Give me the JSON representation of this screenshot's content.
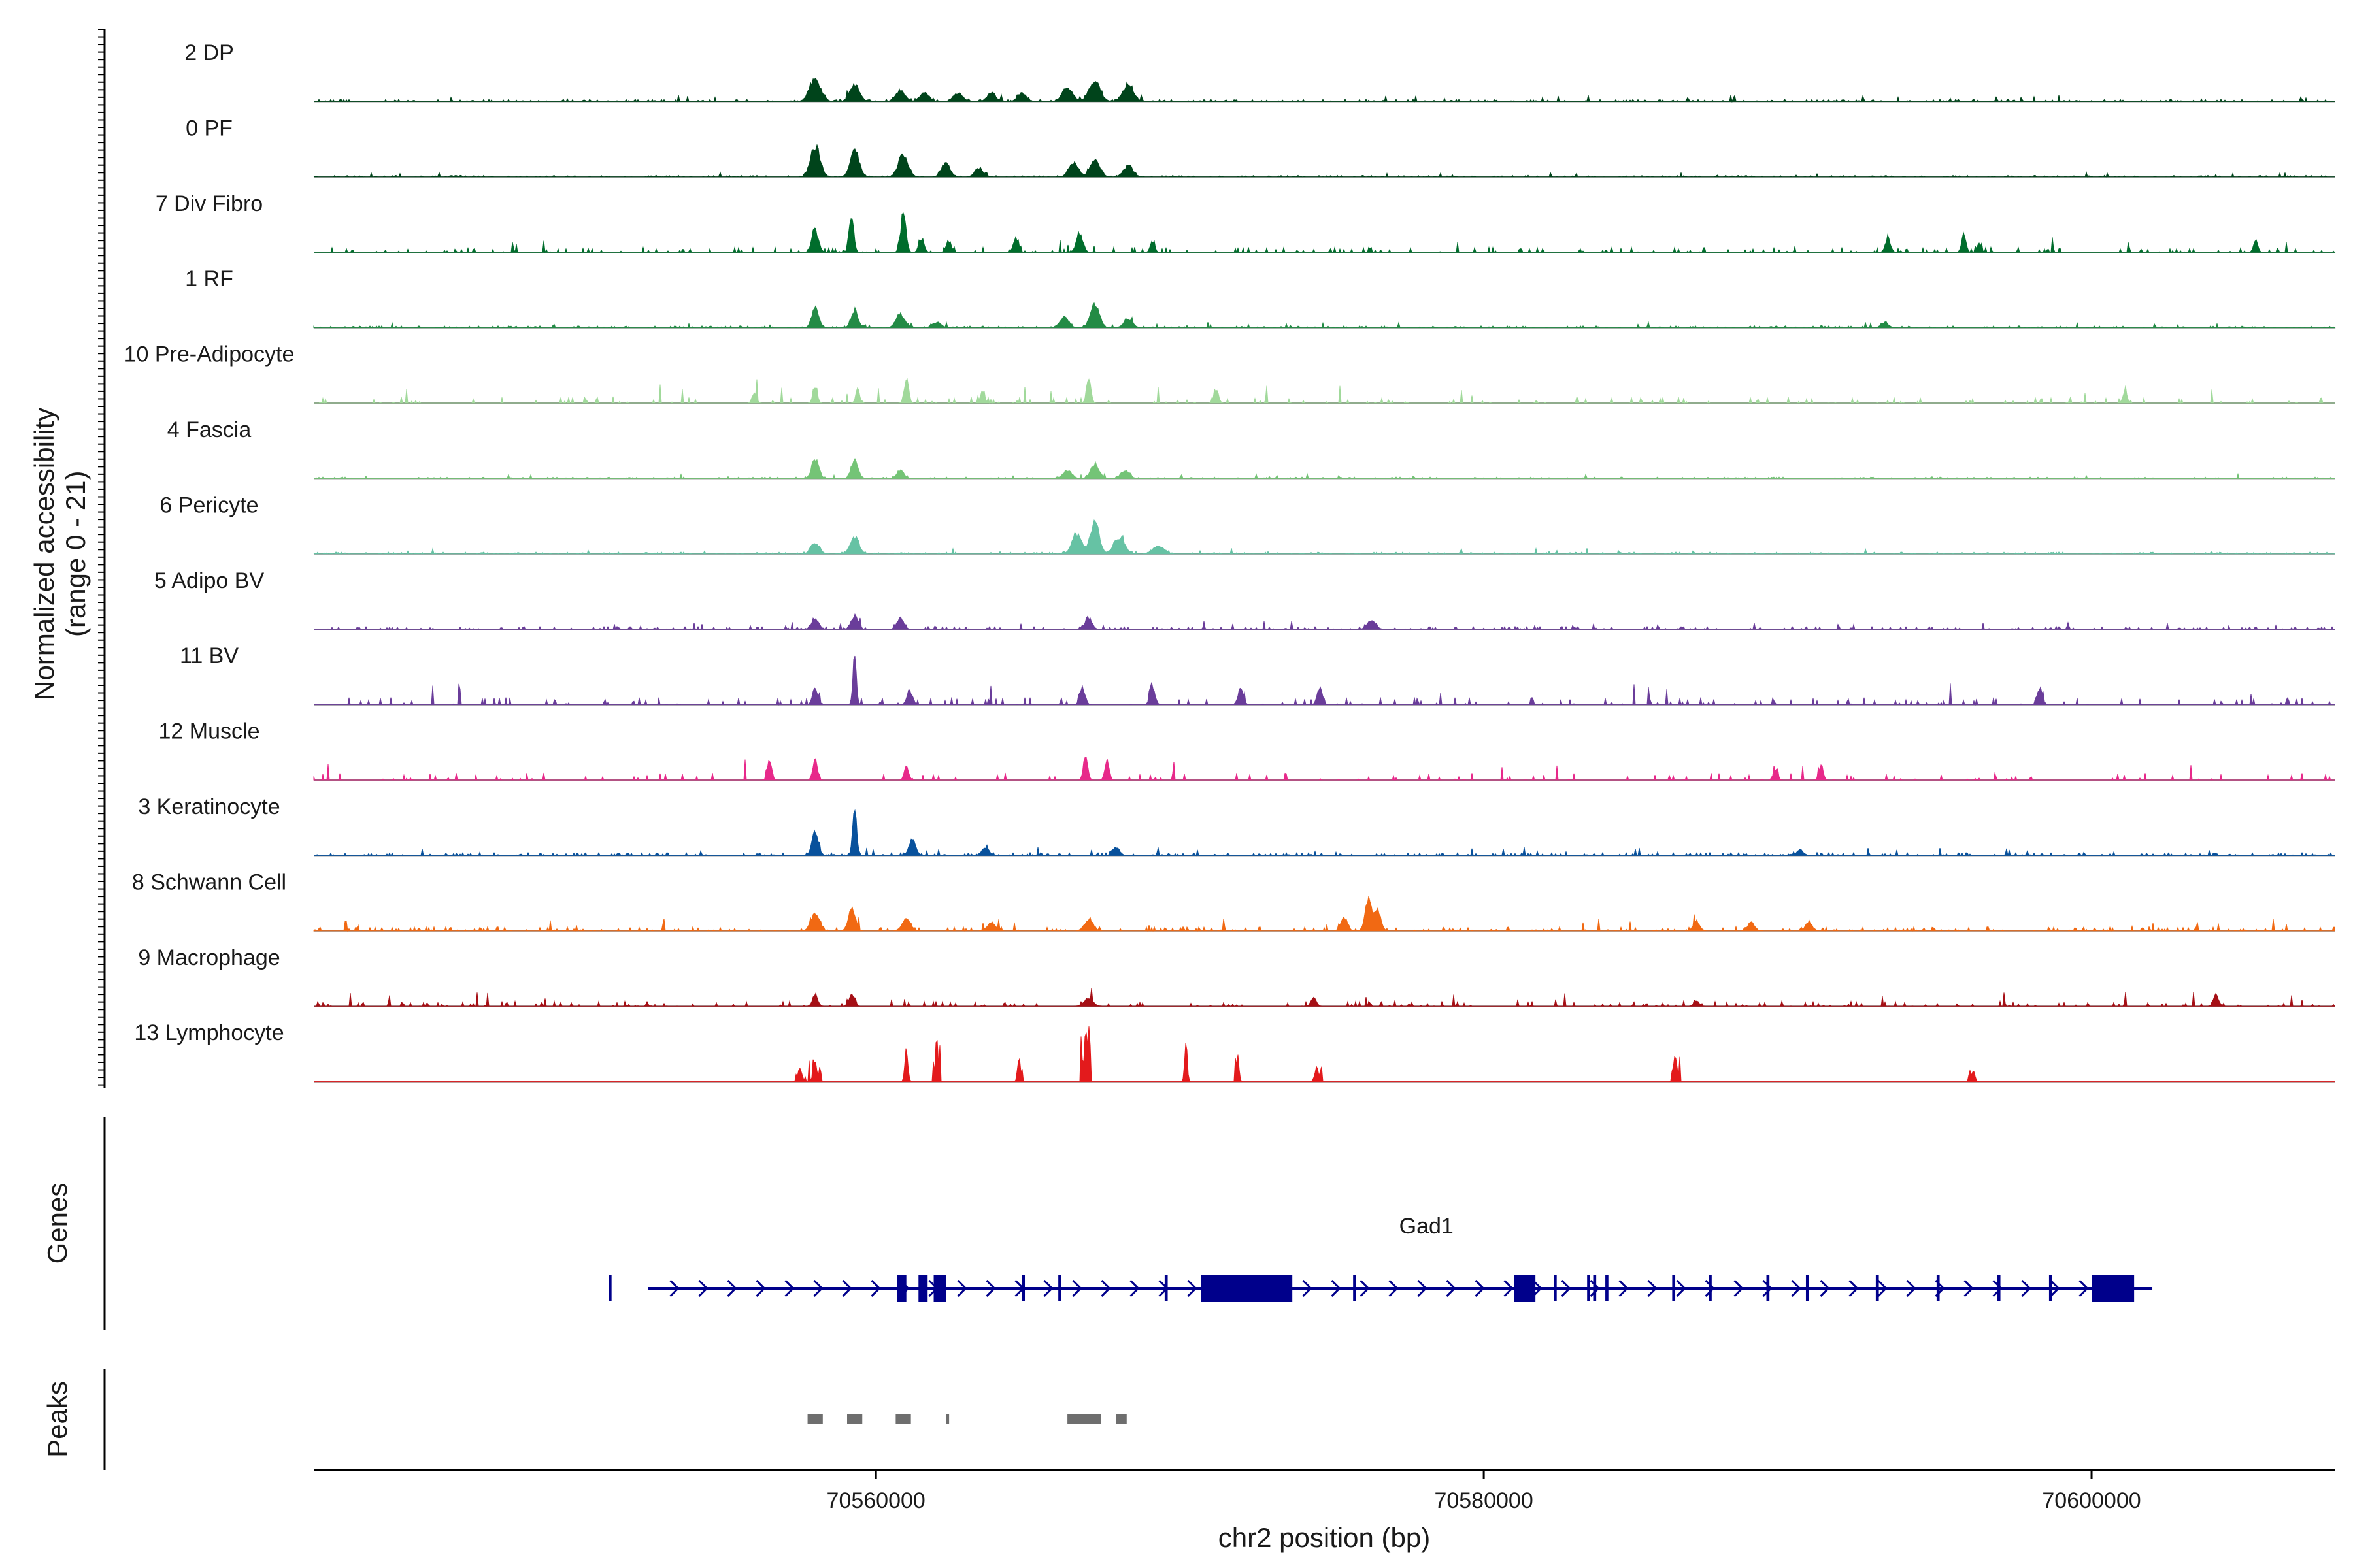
{
  "chart_data": {
    "type": "area",
    "title": "",
    "ylabel_line1": "Normalized accessibility",
    "ylabel_line2": "(range 0 - 21)",
    "y_range": [
      0,
      21
    ],
    "xlabel": "chr2 position (bp)",
    "xlim": [
      70541500,
      70608000
    ],
    "x_ticks": [
      {
        "value": 70560000,
        "label": "70560000"
      },
      {
        "value": 70580000,
        "label": "70580000"
      },
      {
        "value": 70600000,
        "label": "70600000"
      }
    ],
    "tracks": [
      {
        "name": "2 DP",
        "color": "#00441b",
        "peaks": [
          [
            70558000,
            8,
            260
          ],
          [
            70559300,
            6,
            220
          ],
          [
            70560800,
            4,
            220
          ],
          [
            70561600,
            3,
            220
          ],
          [
            70562700,
            3,
            220
          ],
          [
            70563800,
            3,
            200
          ],
          [
            70564800,
            3,
            200
          ],
          [
            70566300,
            5,
            240
          ],
          [
            70567200,
            7,
            260
          ],
          [
            70568300,
            6,
            240
          ]
        ],
        "noise": 0.7,
        "density": 0.9,
        "seed": 1
      },
      {
        "name": "0 PF",
        "color": "#00441b",
        "peaks": [
          [
            70558000,
            11,
            220
          ],
          [
            70559300,
            10,
            200
          ],
          [
            70560900,
            8,
            220
          ],
          [
            70562300,
            5,
            200
          ],
          [
            70563400,
            3,
            200
          ],
          [
            70566500,
            5,
            220
          ],
          [
            70567200,
            6,
            220
          ],
          [
            70568300,
            4,
            220
          ]
        ],
        "noise": 0.5,
        "density": 0.8,
        "seed": 2
      },
      {
        "name": "7 Div Fibro",
        "color": "#006d2c",
        "peaks": [
          [
            70558000,
            8,
            150
          ],
          [
            70559200,
            14,
            100
          ],
          [
            70560900,
            14,
            120
          ],
          [
            70561500,
            5,
            120
          ],
          [
            70562400,
            4,
            120
          ],
          [
            70564600,
            5,
            120
          ],
          [
            70566700,
            7,
            150
          ],
          [
            70569100,
            4,
            100
          ],
          [
            70595800,
            7,
            100
          ],
          [
            70593300,
            5,
            120
          ],
          [
            70596300,
            3,
            100
          ],
          [
            70605400,
            4,
            100
          ]
        ],
        "noise": 1.6,
        "density": 0.45,
        "seed": 3
      },
      {
        "name": "1 RF",
        "color": "#238b45",
        "peaks": [
          [
            70558000,
            7,
            160
          ],
          [
            70559300,
            6,
            160
          ],
          [
            70560800,
            5,
            200
          ],
          [
            70562000,
            2,
            200
          ],
          [
            70566200,
            4,
            200
          ],
          [
            70567200,
            9,
            200
          ],
          [
            70568300,
            3,
            200
          ],
          [
            70593200,
            2,
            160
          ]
        ],
        "noise": 0.6,
        "density": 0.8,
        "seed": 4
      },
      {
        "name": "10 Pre-Adipocyte",
        "color": "#a1d99b",
        "peaks": [
          [
            70556000,
            4,
            100
          ],
          [
            70558000,
            6,
            100
          ],
          [
            70559400,
            4,
            100
          ],
          [
            70561000,
            9,
            100
          ],
          [
            70563500,
            4,
            100
          ],
          [
            70567000,
            9,
            100
          ],
          [
            70571200,
            5,
            100
          ],
          [
            70601100,
            4,
            100
          ]
        ],
        "noise": 2.0,
        "density": 0.35,
        "seed": 5
      },
      {
        "name": "4 Fascia",
        "color": "#74c476",
        "peaks": [
          [
            70558000,
            7,
            160
          ],
          [
            70559300,
            7,
            160
          ],
          [
            70560800,
            3,
            160
          ],
          [
            70566300,
            3,
            200
          ],
          [
            70567200,
            5,
            200
          ],
          [
            70568200,
            3,
            200
          ]
        ],
        "noise": 0.5,
        "density": 0.7,
        "seed": 6
      },
      {
        "name": "6 Pericyte",
        "color": "#66c2a4",
        "peaks": [
          [
            70558000,
            4,
            200
          ],
          [
            70559300,
            6,
            200
          ],
          [
            70566600,
            7,
            220
          ],
          [
            70567200,
            11,
            200
          ],
          [
            70568000,
            6,
            250
          ],
          [
            70569300,
            3,
            250
          ]
        ],
        "noise": 0.6,
        "density": 0.7,
        "seed": 7
      },
      {
        "name": "5 Adipo BV",
        "color": "#6a3d9a",
        "peaks": [
          [
            70558000,
            4,
            160
          ],
          [
            70559300,
            5,
            160
          ],
          [
            70560800,
            4,
            160
          ],
          [
            70567000,
            4,
            160
          ],
          [
            70576300,
            3,
            200
          ]
        ],
        "noise": 0.9,
        "density": 0.7,
        "seed": 8
      },
      {
        "name": "11 BV",
        "color": "#6a3d9a",
        "peaks": [
          [
            70558000,
            6,
            120
          ],
          [
            70559300,
            17,
            80
          ],
          [
            70561100,
            5,
            120
          ],
          [
            70566800,
            6,
            120
          ],
          [
            70569100,
            6,
            120
          ],
          [
            70572000,
            6,
            120
          ],
          [
            70574600,
            6,
            120
          ],
          [
            70598300,
            6,
            120
          ]
        ],
        "noise": 2.3,
        "density": 0.35,
        "seed": 9
      },
      {
        "name": "12 Muscle",
        "color": "#e7298a",
        "peaks": [
          [
            70556500,
            7,
            100
          ],
          [
            70558000,
            8,
            100
          ],
          [
            70561000,
            5,
            100
          ],
          [
            70566900,
            9,
            100
          ],
          [
            70567600,
            7,
            100
          ],
          [
            70589600,
            4,
            100
          ],
          [
            70591100,
            5,
            100
          ]
        ],
        "noise": 2.3,
        "density": 0.3,
        "seed": 10
      },
      {
        "name": "3 Keratinocyte",
        "color": "#08519c",
        "peaks": [
          [
            70558000,
            8,
            150
          ],
          [
            70559300,
            18,
            90
          ],
          [
            70561200,
            6,
            150
          ],
          [
            70563600,
            3,
            160
          ],
          [
            70567900,
            3,
            160
          ],
          [
            70590400,
            2,
            160
          ]
        ],
        "noise": 0.9,
        "density": 0.8,
        "seed": 11
      },
      {
        "name": "8 Schwann Cell",
        "color": "#f16913",
        "peaks": [
          [
            70558000,
            6,
            200
          ],
          [
            70559200,
            8,
            160
          ],
          [
            70561000,
            4,
            200
          ],
          [
            70563800,
            3,
            200
          ],
          [
            70567000,
            4,
            200
          ],
          [
            70575400,
            5,
            150
          ],
          [
            70576200,
            11,
            150
          ],
          [
            70576500,
            8,
            150
          ],
          [
            70587000,
            3,
            160
          ],
          [
            70588800,
            3,
            160
          ],
          [
            70590700,
            3,
            160
          ]
        ],
        "noise": 1.3,
        "density": 0.65,
        "seed": 12
      },
      {
        "name": "9 Macrophage",
        "color": "#a50f15",
        "peaks": [
          [
            70558000,
            4,
            120
          ],
          [
            70559200,
            4,
            120
          ],
          [
            70567000,
            3,
            200
          ],
          [
            70574400,
            3,
            120
          ],
          [
            70604100,
            4,
            120
          ],
          [
            70587000,
            2,
            120
          ]
        ],
        "noise": 1.6,
        "density": 0.45,
        "seed": 13
      },
      {
        "name": "13 Lymphocyte",
        "color": "#e31a1c",
        "peaks": [
          [
            70557500,
            5,
            90
          ],
          [
            70558000,
            7,
            90
          ],
          [
            70561000,
            11,
            70
          ],
          [
            70562000,
            15,
            60
          ],
          [
            70564700,
            9,
            60
          ],
          [
            70566900,
            19,
            70
          ],
          [
            70570200,
            14,
            60
          ],
          [
            70571900,
            9,
            60
          ],
          [
            70574500,
            5,
            90
          ],
          [
            70586300,
            10,
            80
          ],
          [
            70596100,
            4,
            80
          ]
        ],
        "noise": 0,
        "density": 0,
        "seed": 14
      }
    ],
    "gene": {
      "name": "Gad1",
      "start": 70552500,
      "end": 70602000,
      "color": "#00008b",
      "exons": [
        [
          70551200,
          70551300
        ],
        [
          70560700,
          70561000
        ],
        [
          70561400,
          70561700
        ],
        [
          70561900,
          70562300
        ],
        [
          70564800,
          70564900
        ],
        [
          70566000,
          70566100
        ],
        [
          70569500,
          70569600
        ],
        [
          70570700,
          70573700
        ],
        [
          70575700,
          70575800
        ],
        [
          70581000,
          70581700
        ],
        [
          70582300,
          70582400
        ],
        [
          70583400,
          70583500
        ],
        [
          70583600,
          70583700
        ],
        [
          70584000,
          70584100
        ],
        [
          70586200,
          70586300
        ],
        [
          70587400,
          70587500
        ],
        [
          70589300,
          70589400
        ],
        [
          70590600,
          70590700
        ],
        [
          70592900,
          70593000
        ],
        [
          70594900,
          70595000
        ],
        [
          70596900,
          70597000
        ],
        [
          70598600,
          70598700
        ],
        [
          70600000,
          70601400
        ]
      ],
      "thick_exons": [
        [
          70560700,
          70561000
        ],
        [
          70561400,
          70561700
        ],
        [
          70561900,
          70562300
        ],
        [
          70570700,
          70573700
        ],
        [
          70581000,
          70581700
        ],
        [
          70600000,
          70601400
        ]
      ]
    },
    "peaks_track": {
      "color": "#6e6e6e",
      "regions": [
        [
          70557750,
          70558250
        ],
        [
          70559050,
          70559550
        ],
        [
          70560650,
          70561150
        ],
        [
          70562300,
          70562350
        ],
        [
          70566300,
          70567400
        ],
        [
          70567900,
          70568250
        ]
      ]
    },
    "panel_labels": {
      "genes": "Genes",
      "peaks": "Peaks"
    }
  }
}
